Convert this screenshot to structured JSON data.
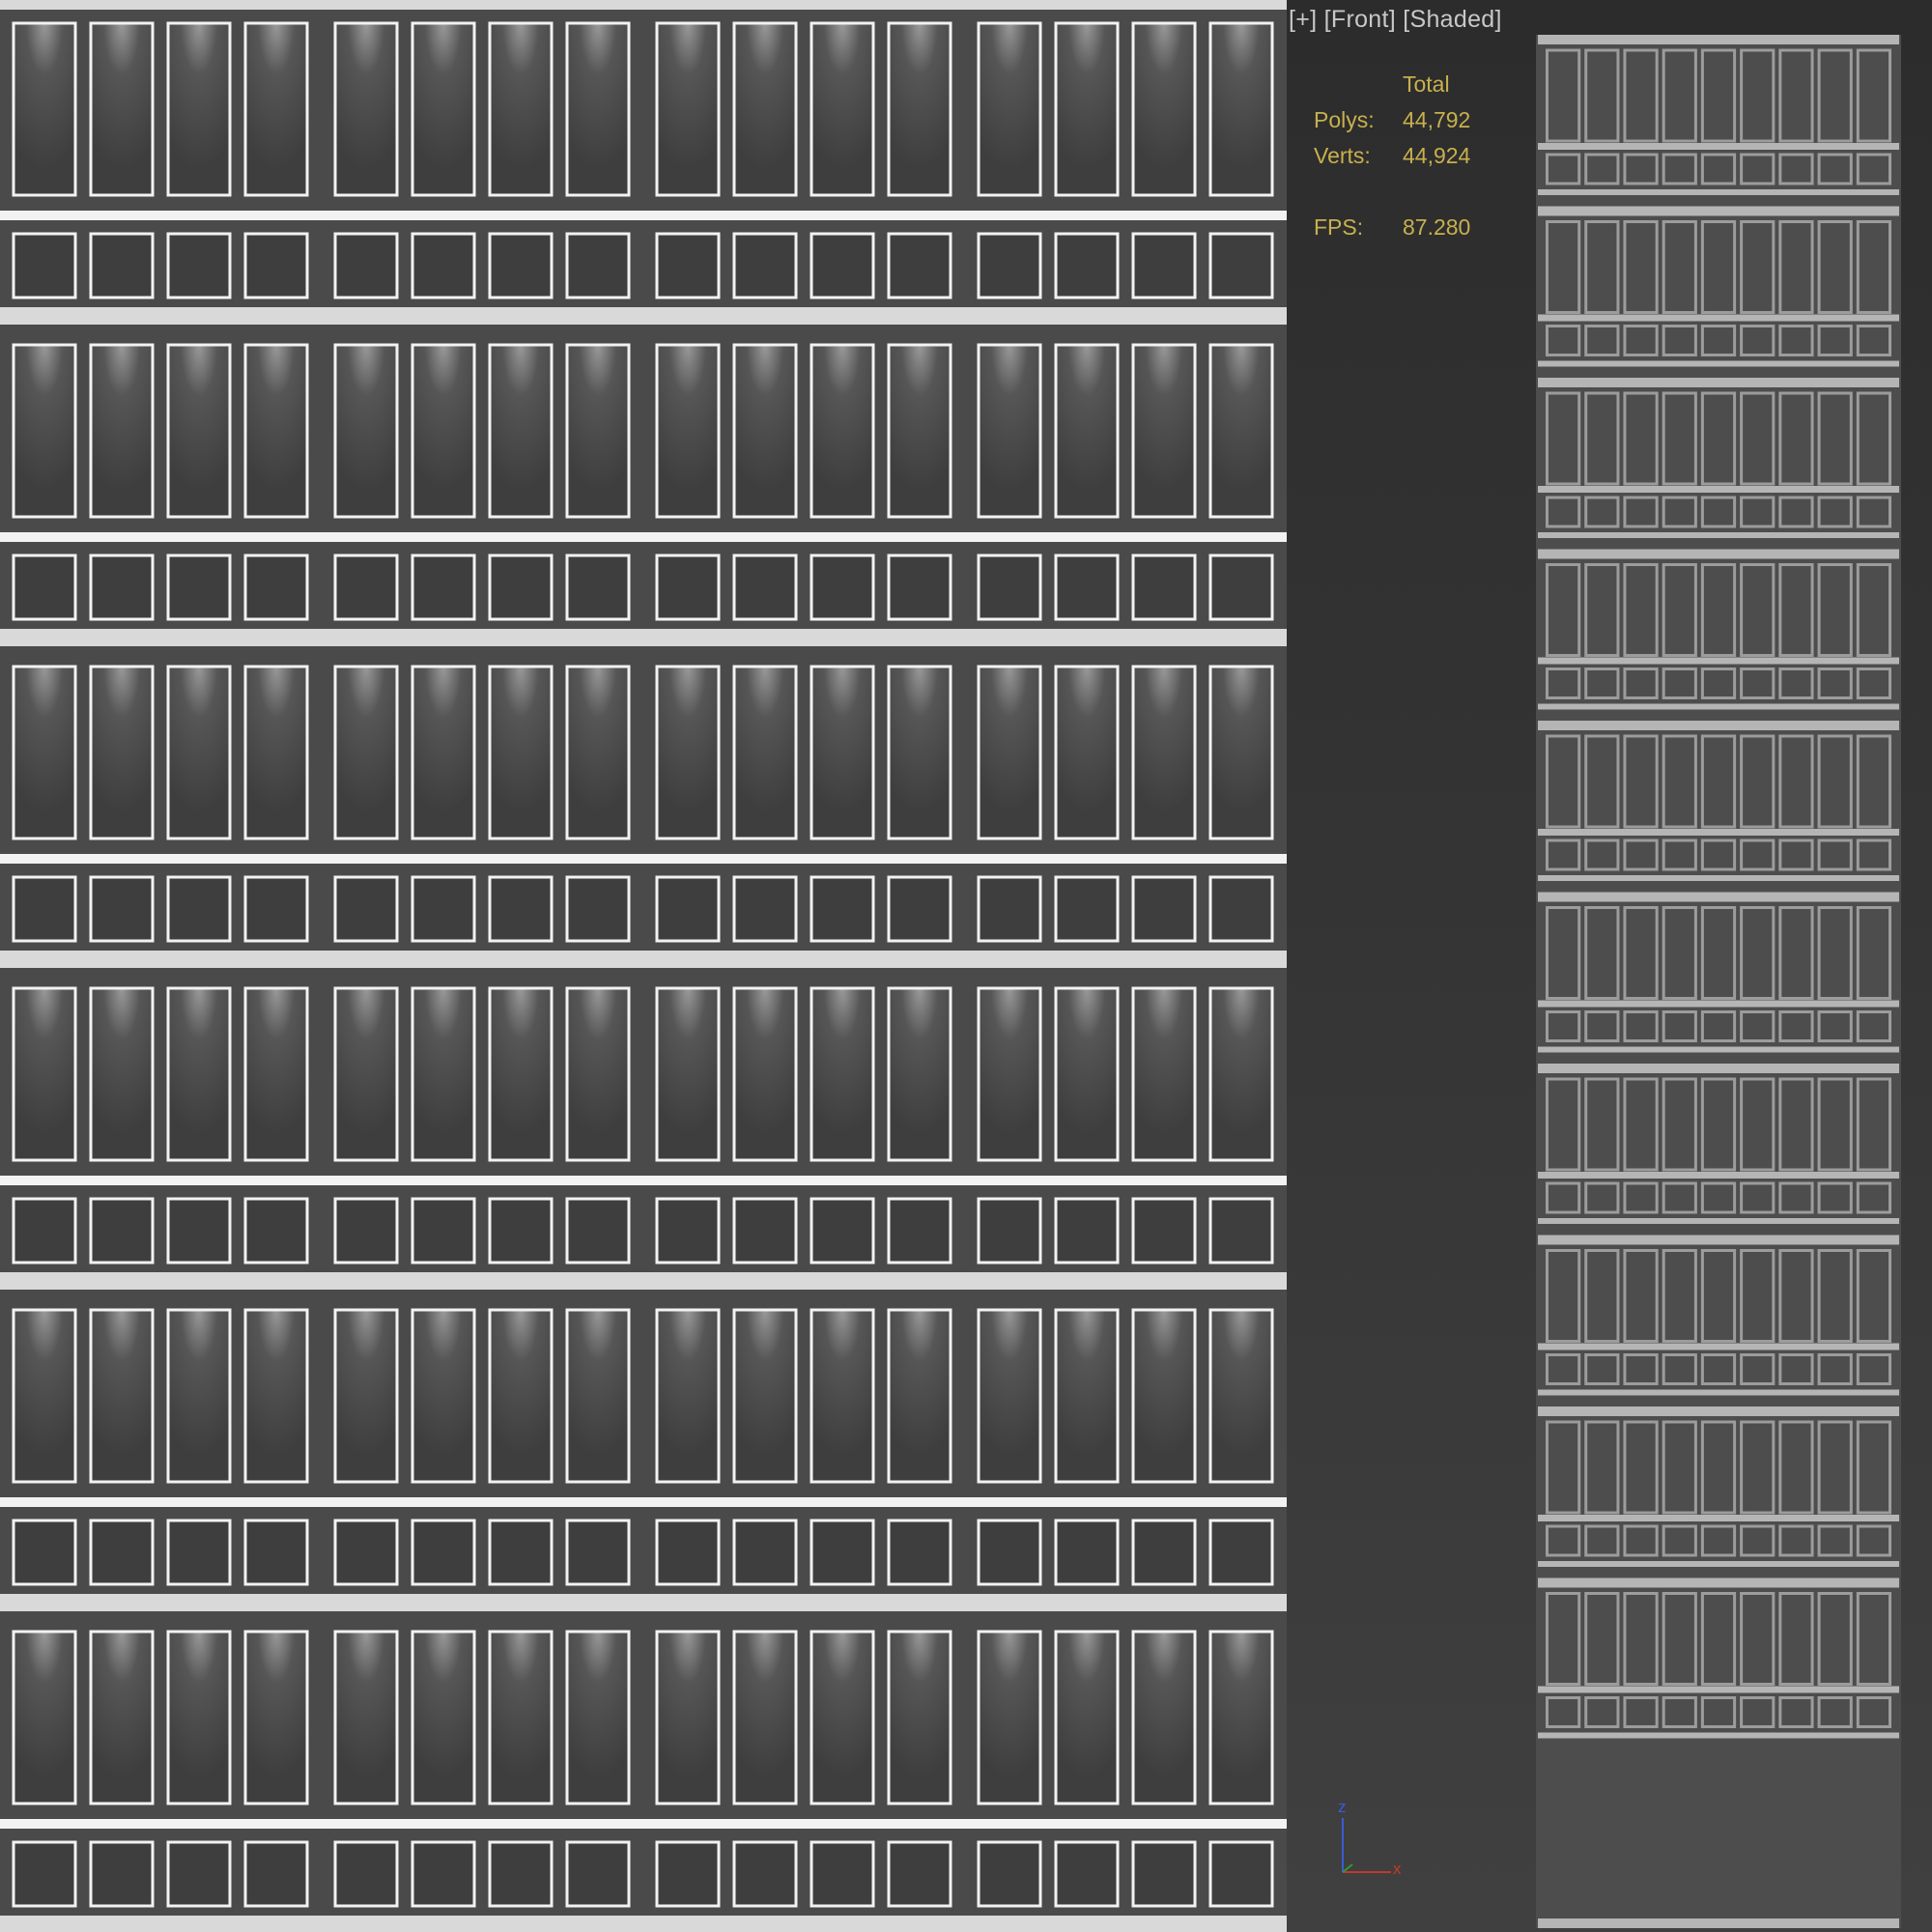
{
  "viewport": {
    "label_plus": "[+]",
    "label_view": "[Front]",
    "label_shading": "[Shaded]",
    "stats": {
      "header": "Total",
      "polys_label": "Polys:",
      "polys_value": "44,792",
      "verts_label": "Verts:",
      "verts_value": "44,924",
      "fps_label": "FPS:",
      "fps_value": "87.280"
    },
    "axis": {
      "z": "z",
      "x": "x"
    }
  },
  "texture": {
    "stories": 6,
    "windows_per_row": 16,
    "window_groups": 4,
    "colors": {
      "panel": "#4a4a4a",
      "frame": "#f2f2f2",
      "slab": "#d9d9d9",
      "glass": "#3e3e3e"
    }
  },
  "model": {
    "stories": 10,
    "windows_per_row": 9,
    "colors": {
      "frame": "#9c9c9c",
      "slab": "#b5b5b5",
      "wall": "#4d4d4d"
    }
  },
  "colors": {
    "stats_text": "#c8b04e",
    "label_text": "#c8c8c8",
    "axis_x": "#c0392b",
    "axis_z": "#3b5bd6",
    "axis_y": "#2e9a3a"
  }
}
